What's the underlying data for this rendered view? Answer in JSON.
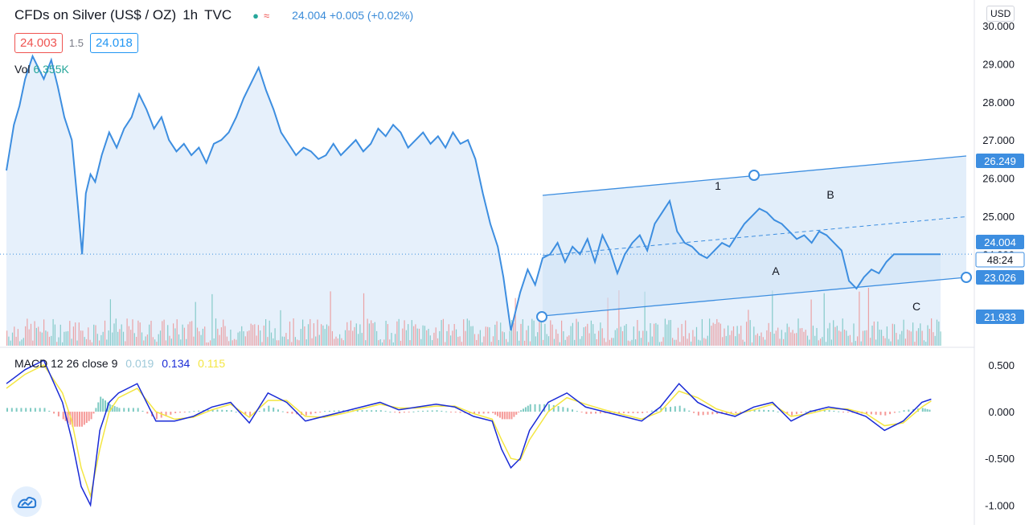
{
  "header": {
    "title": "CFDs on Silver (US$ / OZ)",
    "interval": "1h",
    "source": "TVC",
    "quote": "24.004 +0.005 (+0.02%)"
  },
  "bid_ask": {
    "bid": "24.003",
    "spread": "1.5",
    "ask": "24.018"
  },
  "volume": {
    "label": "Vol",
    "value": "6.355K"
  },
  "currency_button": "USD",
  "macd": {
    "label": "MACD 12 26 close 9",
    "hist": "0.019",
    "macd": "0.134",
    "signal": "0.115"
  },
  "colors": {
    "price_line": "#3d8ee0",
    "price_fill": "#e6f0fb",
    "channel_fill": "#cfe3f7",
    "up": "#26a69a",
    "down": "#ef5350",
    "macd_line": "#1a2bd6",
    "signal_line": "#f4e642"
  },
  "chart_data": [
    {
      "type": "area",
      "name_hint": "price",
      "ylim": [
        21.6,
        30.0
      ],
      "y_ticks": [
        "30.000",
        "29.000",
        "28.000",
        "27.000",
        "26.000",
        "25.000",
        "24.000"
      ],
      "price_labels": [
        "26.249",
        "24.004",
        "23.026",
        "21.933"
      ],
      "countdown": "48:24",
      "last_price": 24.004,
      "x": [
        0,
        0.4,
        0.8,
        1.4,
        2,
        2.8,
        3.4,
        4,
        4.8,
        5.5,
        6.2,
        7,
        7.6,
        8.1,
        8.5,
        9,
        9.5,
        10.2,
        11,
        11.8,
        12.6,
        13.4,
        14.2,
        15,
        15.8,
        16.6,
        17.4,
        18.2,
        19,
        19.8,
        20.6,
        21.4,
        22.2,
        23,
        23.8,
        24.6,
        25.4,
        26.2,
        27,
        27.8,
        28.6,
        29.4,
        30.2,
        31,
        31.8,
        32.6,
        33.4,
        34.2,
        35,
        35.8,
        36.6,
        37.4,
        38.2,
        39,
        39.8,
        40.6,
        41.4,
        42.2,
        43,
        43.8,
        44.6,
        45.4,
        46.2,
        47,
        47.8,
        48.6,
        49.4,
        50.2,
        51,
        51.8,
        52.6,
        53.2,
        53.6,
        54,
        54.4,
        55,
        55.8,
        56.6,
        57.4,
        58.2,
        59,
        59.8,
        60.6,
        61.4,
        62.2,
        63,
        63.8,
        64.6,
        65.4,
        66.2,
        67,
        67.8,
        68.6,
        69.4,
        70.2,
        71,
        71.8,
        72.6,
        73.4,
        74.2,
        75,
        75.8,
        76.6,
        77.4,
        78.2,
        79,
        79.8,
        80.6,
        81.4,
        82.2,
        83,
        83.8,
        84.6,
        85.4,
        86.2,
        87,
        87.8,
        88.6,
        89.4,
        90.2,
        91,
        91.8,
        92.6,
        93.4,
        94.2,
        95,
        95.8,
        96.6,
        97.4,
        98.2,
        99,
        100
      ],
      "values": [
        26.2,
        26.8,
        27.4,
        27.9,
        28.6,
        29.2,
        28.9,
        28.6,
        29.1,
        28.4,
        27.6,
        27.0,
        25.4,
        24.0,
        25.6,
        26.1,
        25.9,
        26.6,
        27.2,
        26.8,
        27.3,
        27.6,
        28.2,
        27.8,
        27.3,
        27.6,
        27.0,
        26.7,
        26.9,
        26.6,
        26.8,
        26.4,
        26.9,
        27.0,
        27.2,
        27.6,
        28.1,
        28.5,
        28.9,
        28.3,
        27.8,
        27.2,
        26.9,
        26.6,
        26.8,
        26.7,
        26.5,
        26.6,
        26.9,
        26.6,
        26.8,
        27.0,
        26.7,
        26.9,
        27.3,
        27.1,
        27.4,
        27.2,
        26.8,
        27.0,
        27.2,
        26.9,
        27.1,
        26.8,
        27.2,
        26.9,
        27.0,
        26.5,
        25.6,
        24.8,
        24.2,
        23.4,
        22.7,
        22.0,
        22.4,
        23.0,
        23.6,
        23.2,
        23.9,
        24.0,
        24.3,
        23.8,
        24.2,
        24.0,
        24.4,
        23.8,
        24.5,
        24.1,
        23.5,
        24.0,
        24.3,
        24.5,
        24.1,
        24.8,
        25.1,
        25.4,
        24.6,
        24.3,
        24.2,
        24.0,
        23.9,
        24.1,
        24.3,
        24.2,
        24.5,
        24.8,
        25.0,
        25.2,
        25.1,
        24.9,
        24.8,
        24.6,
        24.4,
        24.5,
        24.3,
        24.6,
        24.5,
        24.3,
        24.1,
        23.3,
        23.1,
        23.4,
        23.6,
        23.5,
        23.8,
        24.0,
        24.0,
        24.0,
        24.0,
        24.0,
        24.0,
        24.0
      ]
    },
    {
      "type": "bar",
      "name_hint": "volume",
      "values_pattern": "random-small"
    },
    {
      "type": "line",
      "name_hint": "macd",
      "y_ticks": [
        "0.500",
        "0.000",
        "-0.500",
        "-1.000"
      ],
      "ylim": [
        -1.1,
        0.62
      ],
      "x": [
        0,
        2,
        4,
        6,
        7,
        8,
        9,
        10,
        11,
        12,
        14,
        16,
        18,
        20,
        22,
        24,
        26,
        28,
        30,
        32,
        34,
        36,
        38,
        40,
        42,
        44,
        46,
        48,
        50,
        52,
        53,
        54,
        55,
        56,
        58,
        60,
        62,
        64,
        66,
        68,
        70,
        72,
        74,
        76,
        78,
        80,
        82,
        84,
        86,
        88,
        90,
        92,
        94,
        96,
        98,
        99
      ],
      "macd": [
        0.3,
        0.45,
        0.55,
        0.1,
        -0.3,
        -0.8,
        -1.0,
        -0.2,
        0.1,
        0.2,
        0.3,
        -0.1,
        -0.1,
        -0.05,
        0.05,
        0.1,
        -0.12,
        0.2,
        0.1,
        -0.1,
        -0.05,
        0.0,
        0.05,
        0.1,
        0.02,
        0.05,
        0.08,
        0.05,
        -0.05,
        -0.1,
        -0.4,
        -0.6,
        -0.5,
        -0.2,
        0.1,
        0.2,
        0.05,
        0.0,
        -0.05,
        -0.1,
        0.05,
        0.3,
        0.1,
        0.0,
        -0.05,
        0.05,
        0.1,
        -0.1,
        0.0,
        0.05,
        0.02,
        -0.05,
        -0.2,
        -0.1,
        0.1,
        0.134
      ],
      "signal": [
        0.25,
        0.4,
        0.5,
        0.2,
        -0.1,
        -0.6,
        -0.9,
        -0.4,
        0.0,
        0.15,
        0.25,
        0.0,
        -0.08,
        -0.06,
        0.02,
        0.08,
        -0.06,
        0.12,
        0.12,
        -0.05,
        -0.06,
        -0.02,
        0.03,
        0.08,
        0.04,
        0.04,
        0.06,
        0.06,
        -0.02,
        -0.08,
        -0.3,
        -0.5,
        -0.52,
        -0.3,
        0.0,
        0.15,
        0.08,
        0.02,
        -0.03,
        -0.08,
        0.0,
        0.22,
        0.15,
        0.03,
        -0.03,
        0.02,
        0.08,
        -0.05,
        -0.02,
        0.03,
        0.03,
        -0.02,
        -0.15,
        -0.12,
        0.05,
        0.115
      ]
    }
  ],
  "annotations": [
    "1",
    "A",
    "B",
    "C"
  ]
}
